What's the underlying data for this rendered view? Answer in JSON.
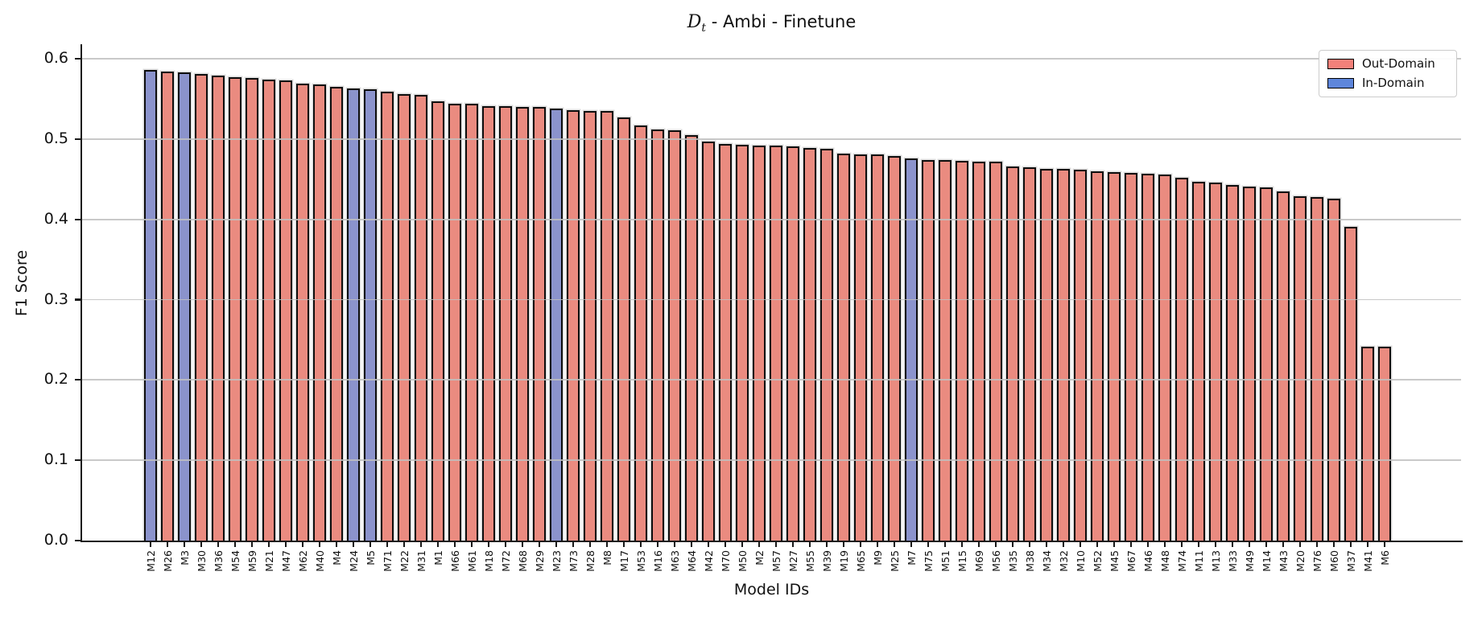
{
  "figure": {
    "title_parts": {
      "d": "D",
      "sub": "t",
      "rest": " - Ambi - Finetune"
    }
  },
  "chart_data": {
    "type": "bar",
    "title": "𝒟ₜ - Ambi - Finetune",
    "xlabel": "Model IDs",
    "ylabel": "F1 Score",
    "ylim": [
      0,
      0.618
    ],
    "yticks": [
      0.0,
      0.1,
      0.2,
      0.3,
      0.4,
      0.5,
      0.6
    ],
    "grid": "horizontal gridlines at each 0.1, drawn over bars",
    "legend_position": "upper right",
    "legend": {
      "entries": [
        {
          "label": "Out-Domain",
          "color": "#f3817a"
        },
        {
          "label": "In-Domain",
          "color": "#5e86db"
        }
      ]
    },
    "categories": [
      "M12",
      "M26",
      "M3",
      "M30",
      "M36",
      "M54",
      "M59",
      "M21",
      "M47",
      "M62",
      "M40",
      "M4",
      "M24",
      "M5",
      "M71",
      "M22",
      "M31",
      "M1",
      "M66",
      "M61",
      "M18",
      "M72",
      "M68",
      "M29",
      "M23",
      "M73",
      "M28",
      "M8",
      "M17",
      "M53",
      "M16",
      "M63",
      "M64",
      "M42",
      "M70",
      "M50",
      "M2",
      "M57",
      "M27",
      "M55",
      "M39",
      "M19",
      "M65",
      "M9",
      "M25",
      "M7",
      "M75",
      "M51",
      "M15",
      "M69",
      "M56",
      "M35",
      "M38",
      "M34",
      "M32",
      "M10",
      "M52",
      "M45",
      "M67",
      "M46",
      "M48",
      "M74",
      "M11",
      "M13",
      "M33",
      "M49",
      "M14",
      "M43",
      "M20",
      "M76",
      "M60",
      "M37",
      "M41",
      "M6"
    ],
    "values": [
      0.586,
      0.584,
      0.583,
      0.581,
      0.579,
      0.577,
      0.576,
      0.574,
      0.573,
      0.569,
      0.568,
      0.565,
      0.563,
      0.562,
      0.559,
      0.556,
      0.555,
      0.547,
      0.544,
      0.544,
      0.541,
      0.541,
      0.54,
      0.54,
      0.538,
      0.536,
      0.535,
      0.535,
      0.527,
      0.517,
      0.512,
      0.511,
      0.505,
      0.497,
      0.494,
      0.493,
      0.492,
      0.492,
      0.491,
      0.489,
      0.488,
      0.482,
      0.481,
      0.481,
      0.479,
      0.476,
      0.474,
      0.474,
      0.473,
      0.472,
      0.472,
      0.466,
      0.465,
      0.463,
      0.463,
      0.462,
      0.46,
      0.459,
      0.458,
      0.457,
      0.456,
      0.452,
      0.447,
      0.446,
      0.443,
      0.441,
      0.44,
      0.435,
      0.429,
      0.428,
      0.426,
      0.391,
      0.241,
      0.241
    ],
    "in_domain_models": [
      "M12",
      "M3",
      "M24",
      "M5",
      "M23",
      "M7"
    ],
    "colors": {
      "out_domain_bar": "#ea8b80",
      "in_domain_bar": "#8b93cc",
      "bar_edge": "#0d0d0d",
      "gridline": "#c0c0c0"
    }
  }
}
